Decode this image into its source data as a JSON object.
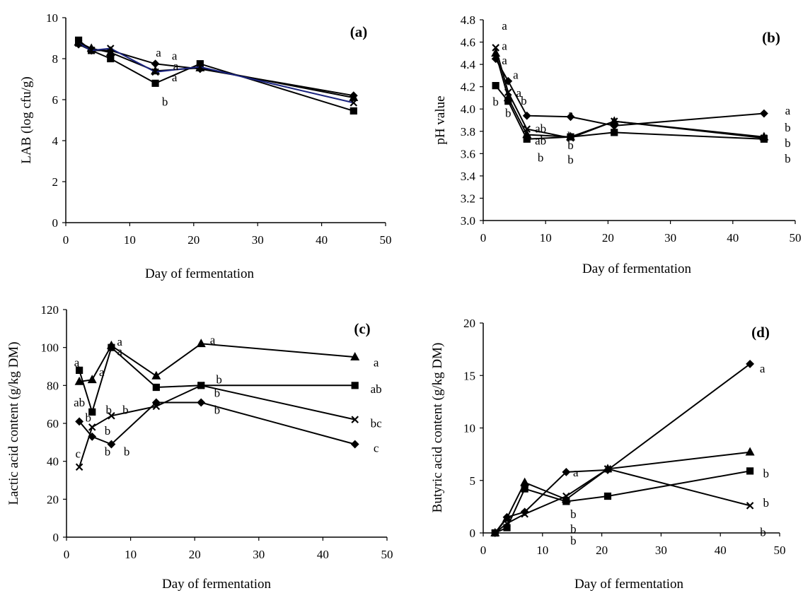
{
  "chart_data": [
    {
      "panel_label": "(a)",
      "type": "line",
      "xlabel": "Day of fermentation",
      "ylabel": "LAB (log cfu/g)",
      "xlim": [
        0,
        50
      ],
      "ylim": [
        0,
        10
      ],
      "xticks": [
        0,
        10,
        20,
        30,
        40,
        50
      ],
      "yticks": [
        0,
        2,
        4,
        6,
        8,
        10
      ],
      "ytick_labels": [
        "0",
        "2",
        "4",
        "6",
        "8",
        "10"
      ],
      "grid": false,
      "series": [
        {
          "marker": "diamond",
          "color": "#000000",
          "points": [
            [
              2,
              8.7
            ],
            [
              4,
              8.4
            ],
            [
              7,
              8.4
            ],
            [
              14,
              7.75
            ],
            [
              21,
              7.5
            ],
            [
              45,
              6.2
            ]
          ]
        },
        {
          "marker": "square",
          "color": "#000000",
          "points": [
            [
              2,
              8.9
            ],
            [
              4,
              8.4
            ],
            [
              7,
              8.0
            ],
            [
              14,
              6.8
            ],
            [
              21,
              7.75
            ],
            [
              45,
              5.45
            ]
          ]
        },
        {
          "marker": "triangle",
          "color": "#000000",
          "points": [
            [
              2,
              8.8
            ],
            [
              4,
              8.5
            ],
            [
              7,
              8.3
            ],
            [
              14,
              7.4
            ],
            [
              21,
              7.55
            ],
            [
              45,
              6.1
            ]
          ]
        },
        {
          "marker": "cross",
          "color": "#1a237e",
          "points": [
            [
              2,
              8.75
            ],
            [
              4,
              8.4
            ],
            [
              7,
              8.5
            ],
            [
              14,
              7.35
            ],
            [
              21,
              7.6
            ],
            [
              45,
              5.85
            ]
          ]
        }
      ],
      "annotations": [
        {
          "text": "a",
          "x": 14.5,
          "y": 8.1
        },
        {
          "text": "a",
          "x": 17.0,
          "y": 7.95
        },
        {
          "text": "a",
          "x": 17.2,
          "y": 7.45
        },
        {
          "text": "a",
          "x": 17.0,
          "y": 6.9
        },
        {
          "text": "b",
          "x": 15.5,
          "y": 5.7
        }
      ]
    },
    {
      "panel_label": "(b)",
      "type": "line",
      "xlabel": "Day of fermentation",
      "ylabel": "pH value",
      "xlim": [
        0,
        50
      ],
      "ylim": [
        3.0,
        4.8
      ],
      "xticks": [
        0,
        10,
        20,
        30,
        40,
        50
      ],
      "yticks": [
        3.0,
        3.2,
        3.4,
        3.6,
        3.8,
        4.0,
        4.2,
        4.4,
        4.6,
        4.8
      ],
      "ytick_labels": [
        "3.0",
        "3.2",
        "3.4",
        "3.6",
        "3.8",
        "4.0",
        "4.2",
        "4.4",
        "4.6",
        "4.8"
      ],
      "grid": false,
      "series": [
        {
          "marker": "diamond",
          "color": "#000000",
          "points": [
            [
              2,
              4.45
            ],
            [
              4,
              4.25
            ],
            [
              7,
              3.94
            ],
            [
              14,
              3.93
            ],
            [
              21,
              3.85
            ],
            [
              45,
              3.96
            ]
          ]
        },
        {
          "marker": "square",
          "color": "#000000",
          "points": [
            [
              2,
              4.21
            ],
            [
              4,
              4.07
            ],
            [
              7,
              3.73
            ],
            [
              14,
              3.75
            ],
            [
              21,
              3.79
            ],
            [
              45,
              3.73
            ]
          ]
        },
        {
          "marker": "triangle",
          "color": "#000000",
          "points": [
            [
              2,
              4.5
            ],
            [
              4,
              4.1
            ],
            [
              7,
              3.77
            ],
            [
              14,
              3.75
            ],
            [
              21,
              3.89
            ],
            [
              45,
              3.75
            ]
          ]
        },
        {
          "marker": "cross",
          "color": "#000000",
          "points": [
            [
              2,
              4.55
            ],
            [
              4,
              4.15
            ],
            [
              7,
              3.82
            ],
            [
              14,
              3.74
            ],
            [
              21,
              3.89
            ],
            [
              45,
              3.74
            ]
          ]
        }
      ],
      "annotations": [
        {
          "text": "a",
          "x": 3.4,
          "y": 4.71
        },
        {
          "text": "a",
          "x": 3.4,
          "y": 4.53
        },
        {
          "text": "a",
          "x": 3.4,
          "y": 4.4
        },
        {
          "text": "a",
          "x": 5.2,
          "y": 4.27
        },
        {
          "text": "a",
          "x": 5.7,
          "y": 4.11
        },
        {
          "text": "b",
          "x": 2.0,
          "y": 4.03
        },
        {
          "text": "b",
          "x": 4.0,
          "y": 3.93
        },
        {
          "text": "b",
          "x": 6.5,
          "y": 4.04
        },
        {
          "text": "ab",
          "x": 9.2,
          "y": 3.79
        },
        {
          "text": "ab",
          "x": 9.2,
          "y": 3.68
        },
        {
          "text": "b",
          "x": 9.2,
          "y": 3.53
        },
        {
          "text": "a",
          "x": 14.0,
          "y": 3.92
        },
        {
          "text": "b",
          "x": 14.0,
          "y": 3.72
        },
        {
          "text": "b",
          "x": 14.0,
          "y": 3.64
        },
        {
          "text": "b",
          "x": 14.0,
          "y": 3.51
        },
        {
          "text": "a",
          "x": 48.8,
          "y": 3.95
        },
        {
          "text": "b",
          "x": 48.8,
          "y": 3.8
        },
        {
          "text": "b",
          "x": 48.8,
          "y": 3.66
        },
        {
          "text": "b",
          "x": 48.8,
          "y": 3.52
        }
      ]
    },
    {
      "panel_label": "(c)",
      "type": "line",
      "xlabel": "Day of fermentation",
      "ylabel": "Lactic acid content (g/kg DM)",
      "xlim": [
        0,
        50
      ],
      "ylim": [
        0,
        120
      ],
      "xticks": [
        0,
        10,
        20,
        30,
        40,
        50
      ],
      "yticks": [
        0,
        20,
        40,
        60,
        80,
        100,
        120
      ],
      "ytick_labels": [
        "0",
        "20",
        "40",
        "60",
        "80",
        "100",
        "120"
      ],
      "grid": false,
      "series": [
        {
          "marker": "diamond",
          "color": "#000000",
          "points": [
            [
              2,
              61
            ],
            [
              4,
              53
            ],
            [
              7,
              49
            ],
            [
              14,
              71
            ],
            [
              21,
              71
            ],
            [
              45,
              49
            ]
          ]
        },
        {
          "marker": "square",
          "color": "#000000",
          "points": [
            [
              2,
              88
            ],
            [
              4,
              66
            ],
            [
              7,
              100
            ],
            [
              14,
              79
            ],
            [
              21,
              80
            ],
            [
              45,
              80
            ]
          ]
        },
        {
          "marker": "triangle",
          "color": "#000000",
          "points": [
            [
              2,
              82
            ],
            [
              4,
              83
            ],
            [
              7,
              101
            ],
            [
              14,
              85
            ],
            [
              21,
              102
            ],
            [
              45,
              95
            ]
          ]
        },
        {
          "marker": "cross",
          "color": "#000000",
          "points": [
            [
              2,
              37
            ],
            [
              4,
              58
            ],
            [
              7,
              64
            ],
            [
              14,
              69
            ],
            [
              21,
              80
            ],
            [
              45,
              62
            ]
          ]
        }
      ],
      "annotations": [
        {
          "text": "a",
          "x": 1.6,
          "y": 90
        },
        {
          "text": "a",
          "x": 5.5,
          "y": 85
        },
        {
          "text": "a",
          "x": 8.3,
          "y": 101
        },
        {
          "text": "a",
          "x": 8.3,
          "y": 96
        },
        {
          "text": "a",
          "x": 22.8,
          "y": 102
        },
        {
          "text": "a",
          "x": 48.3,
          "y": 90
        },
        {
          "text": "ab",
          "x": 2.0,
          "y": 69
        },
        {
          "text": "b",
          "x": 3.4,
          "y": 61
        },
        {
          "text": "b",
          "x": 6.6,
          "y": 65
        },
        {
          "text": "b",
          "x": 9.2,
          "y": 65
        },
        {
          "text": "b",
          "x": 6.4,
          "y": 54
        },
        {
          "text": "b",
          "x": 6.4,
          "y": 43
        },
        {
          "text": "b",
          "x": 9.4,
          "y": 43
        },
        {
          "text": "c",
          "x": 1.8,
          "y": 42
        },
        {
          "text": "b",
          "x": 23.8,
          "y": 81
        },
        {
          "text": "b",
          "x": 23.5,
          "y": 74
        },
        {
          "text": "b",
          "x": 23.5,
          "y": 65
        },
        {
          "text": "ab",
          "x": 48.3,
          "y": 76
        },
        {
          "text": "bc",
          "x": 48.3,
          "y": 58
        },
        {
          "text": "c",
          "x": 48.3,
          "y": 45
        }
      ]
    },
    {
      "panel_label": "(d)",
      "type": "line",
      "xlabel": "Day of fermentation",
      "ylabel": "Butyric acid content (g/kg DM)",
      "xlim": [
        0,
        50
      ],
      "ylim": [
        0,
        20
      ],
      "xticks": [
        0,
        10,
        20,
        30,
        40,
        50
      ],
      "yticks": [
        0,
        5,
        10,
        15,
        20
      ],
      "ytick_labels": [
        "0",
        "5",
        "10",
        "15",
        "20"
      ],
      "grid": false,
      "series": [
        {
          "marker": "diamond",
          "color": "#000000",
          "points": [
            [
              2,
              0
            ],
            [
              4,
              1.5
            ],
            [
              7,
              2.0
            ],
            [
              14,
              5.8
            ],
            [
              21,
              6.0
            ],
            [
              45,
              16.1
            ]
          ]
        },
        {
          "marker": "square",
          "color": "#000000",
          "points": [
            [
              2,
              0
            ],
            [
              4,
              0.5
            ],
            [
              7,
              4.2
            ],
            [
              14,
              3.0
            ],
            [
              21,
              3.5
            ],
            [
              45,
              5.9
            ]
          ]
        },
        {
          "marker": "triangle",
          "color": "#000000",
          "points": [
            [
              2,
              0
            ],
            [
              4,
              1.4
            ],
            [
              7,
              4.8
            ],
            [
              14,
              3.2
            ],
            [
              21,
              6.1
            ],
            [
              45,
              7.7
            ]
          ]
        },
        {
          "marker": "cross",
          "color": "#000000",
          "points": [
            [
              2,
              0
            ],
            [
              4,
              0.9
            ],
            [
              7,
              1.8
            ],
            [
              14,
              3.5
            ],
            [
              21,
              6.1
            ],
            [
              45,
              2.6
            ]
          ]
        }
      ],
      "annotations": [
        {
          "text": "a",
          "x": 15.6,
          "y": 5.4
        },
        {
          "text": "a",
          "x": 47.1,
          "y": 15.3
        },
        {
          "text": "b",
          "x": 47.7,
          "y": 5.3
        },
        {
          "text": "b",
          "x": 47.7,
          "y": 2.5
        },
        {
          "text": "b",
          "x": 15.2,
          "y": 1.4
        },
        {
          "text": "b",
          "x": 15.2,
          "y": 0.0
        },
        {
          "text": "b",
          "x": 15.2,
          "y": -1.1
        },
        {
          "text": "b",
          "x": 47.2,
          "y": -0.3
        }
      ]
    }
  ]
}
